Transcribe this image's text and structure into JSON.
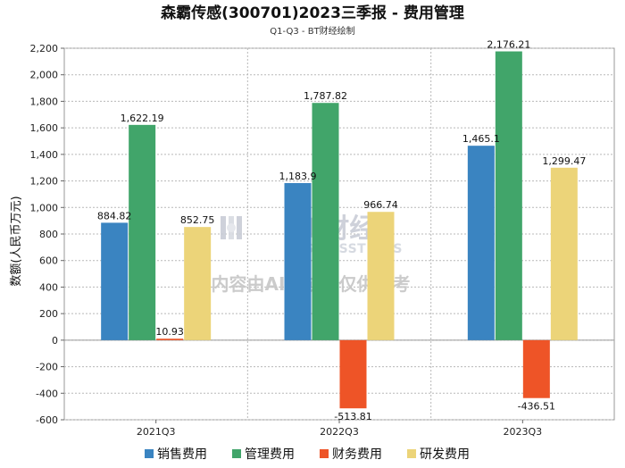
{
  "chart_data": {
    "type": "bar",
    "title": "森霸传感(300701)2023三季报 - 费用管理",
    "subtitle": "Q1-Q3 - BT财经绘制",
    "ylabel": "数额(人民币万元)",
    "xlabel": "",
    "categories": [
      "2021Q3",
      "2022Q3",
      "2023Q3"
    ],
    "series": [
      {
        "name": "销售费用",
        "color": "#3a84c1",
        "values": [
          884.82,
          1183.9,
          1465.1
        ],
        "labels": [
          "884.82",
          "1,183.9",
          "1,465.1"
        ]
      },
      {
        "name": "管理费用",
        "color": "#41a56a",
        "values": [
          1622.19,
          1787.82,
          2176.21
        ],
        "labels": [
          "1,622.19",
          "1,787.82",
          "2,176.21"
        ]
      },
      {
        "name": "财务费用",
        "color": "#ee5427",
        "values": [
          10.93,
          -513.81,
          -436.51
        ],
        "labels": [
          "10.93",
          "-513.81",
          "-436.51"
        ]
      },
      {
        "name": "研发费用",
        "color": "#ecd479",
        "values": [
          852.75,
          966.74,
          1299.47
        ],
        "labels": [
          "852.75",
          "966.74",
          "1,299.47"
        ]
      }
    ],
    "ylim": [
      -600,
      2200
    ],
    "yticks": [
      -600,
      -400,
      -200,
      0,
      200,
      400,
      600,
      800,
      1000,
      1200,
      1400,
      1600,
      1800,
      2000,
      2200
    ],
    "ytick_labels": [
      "-600",
      "-400",
      "-200",
      "0",
      "200",
      "400",
      "600",
      "800",
      "1,000",
      "1,200",
      "1,400",
      "1,600",
      "1,800",
      "2,000",
      "2,200"
    ],
    "grid": true,
    "legend_position": "bottom"
  },
  "watermark": {
    "brand": "BT财经",
    "brand_en": "BUSINESSTIMES",
    "disclaimer": "内容由AI生成，仅供参考"
  }
}
